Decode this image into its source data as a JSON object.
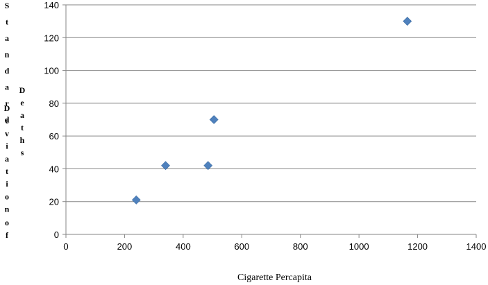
{
  "chart_data": {
    "type": "scatter",
    "title": "",
    "xlabel": "Cigarette Percapita",
    "ylabel_columns": [
      "Standard",
      "Deviation",
      "of",
      "Deaths"
    ],
    "xlim": [
      0,
      1400
    ],
    "ylim": [
      0,
      140
    ],
    "x_ticks": [
      0,
      200,
      400,
      600,
      800,
      1000,
      1200,
      1400
    ],
    "y_ticks": [
      0,
      20,
      40,
      60,
      80,
      100,
      120,
      140
    ],
    "grid": "horizontal",
    "legend": "none",
    "marker": "diamond",
    "marker_color": "#4f81bd",
    "points": [
      {
        "x": 240,
        "y": 21
      },
      {
        "x": 340,
        "y": 42
      },
      {
        "x": 485,
        "y": 42
      },
      {
        "x": 505,
        "y": 70
      },
      {
        "x": 1165,
        "y": 130
      }
    ]
  }
}
